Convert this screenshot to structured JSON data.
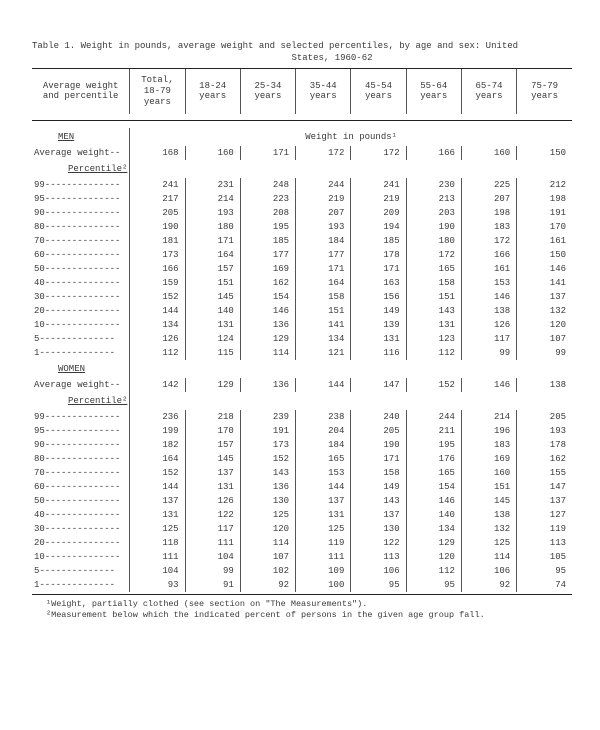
{
  "title_line1": "Table 1.  Weight in  pounds,  average  weight and  selected percentiles,  by age  and sex:   United",
  "title_line2": "States, 1960-62",
  "header_firstcol_l1": "Average weight",
  "header_firstcol_l2": "and percentile",
  "age_headers": [
    "Total,\n18-79\nyears",
    "18-24\nyears",
    "25-34\nyears",
    "35-44\nyears",
    "45-54\nyears",
    "55-64\nyears",
    "65-74\nyears",
    "75-79\nyears"
  ],
  "unit_line": "Weight in pounds¹",
  "sections": [
    {
      "heading": "MEN",
      "avg_label": "Average weight--",
      "avg_values": [
        168,
        160,
        171,
        172,
        172,
        166,
        160,
        150
      ],
      "percentile_heading": "Percentile²",
      "percentiles": [
        {
          "p": "99",
          "v": [
            241,
            231,
            248,
            244,
            241,
            230,
            225,
            212
          ]
        },
        {
          "p": "95",
          "v": [
            217,
            214,
            223,
            219,
            219,
            213,
            207,
            198
          ]
        },
        {
          "p": "90",
          "v": [
            205,
            193,
            208,
            207,
            209,
            203,
            198,
            191
          ]
        },
        {
          "p": "80",
          "v": [
            190,
            180,
            195,
            193,
            194,
            190,
            183,
            170
          ]
        },
        {
          "p": "70",
          "v": [
            181,
            171,
            185,
            184,
            185,
            180,
            172,
            161
          ]
        },
        {
          "p": "60",
          "v": [
            173,
            164,
            177,
            177,
            178,
            172,
            166,
            150
          ]
        },
        {
          "p": "50",
          "v": [
            166,
            157,
            169,
            171,
            171,
            165,
            161,
            146
          ]
        },
        {
          "p": "40",
          "v": [
            159,
            151,
            162,
            164,
            163,
            158,
            153,
            141
          ]
        },
        {
          "p": "30",
          "v": [
            152,
            145,
            154,
            158,
            156,
            151,
            146,
            137
          ]
        },
        {
          "p": "20",
          "v": [
            144,
            140,
            146,
            151,
            149,
            143,
            138,
            132
          ]
        },
        {
          "p": "10",
          "v": [
            134,
            131,
            136,
            141,
            139,
            131,
            126,
            120
          ]
        },
        {
          "p": "5",
          "v": [
            126,
            124,
            129,
            134,
            131,
            123,
            117,
            107
          ]
        },
        {
          "p": "1",
          "v": [
            112,
            115,
            114,
            121,
            116,
            112,
            99,
            99
          ]
        }
      ]
    },
    {
      "heading": "WOMEN",
      "avg_label": "Average weight--",
      "avg_values": [
        142,
        129,
        136,
        144,
        147,
        152,
        146,
        138
      ],
      "percentile_heading": "Percentile²",
      "percentiles": [
        {
          "p": "99",
          "v": [
            236,
            218,
            239,
            238,
            240,
            244,
            214,
            205
          ]
        },
        {
          "p": "95",
          "v": [
            199,
            170,
            191,
            204,
            205,
            211,
            196,
            193
          ]
        },
        {
          "p": "90",
          "v": [
            182,
            157,
            173,
            184,
            190,
            195,
            183,
            178
          ]
        },
        {
          "p": "80",
          "v": [
            164,
            145,
            152,
            165,
            171,
            176,
            169,
            162
          ]
        },
        {
          "p": "70",
          "v": [
            152,
            137,
            143,
            153,
            158,
            165,
            160,
            155
          ]
        },
        {
          "p": "60",
          "v": [
            144,
            131,
            136,
            144,
            149,
            154,
            151,
            147
          ]
        },
        {
          "p": "50",
          "v": [
            137,
            126,
            130,
            137,
            143,
            146,
            145,
            137
          ]
        },
        {
          "p": "40",
          "v": [
            131,
            122,
            125,
            131,
            137,
            140,
            138,
            127
          ]
        },
        {
          "p": "30",
          "v": [
            125,
            117,
            120,
            125,
            130,
            134,
            132,
            119
          ]
        },
        {
          "p": "20",
          "v": [
            118,
            111,
            114,
            119,
            122,
            129,
            125,
            113
          ]
        },
        {
          "p": "10",
          "v": [
            111,
            104,
            107,
            111,
            113,
            120,
            114,
            105
          ]
        },
        {
          "p": "5",
          "v": [
            104,
            99,
            102,
            109,
            106,
            112,
            106,
            95
          ]
        },
        {
          "p": "1",
          "v": [
            93,
            91,
            92,
            100,
            95,
            95,
            92,
            74
          ]
        }
      ]
    }
  ],
  "footnote1": "¹Weight, partially clothed (see section on \"The Measurements\").",
  "footnote2": "²Measurement below which the indicated percent of persons in the given age group fall.",
  "dash_fill": "--------------"
}
